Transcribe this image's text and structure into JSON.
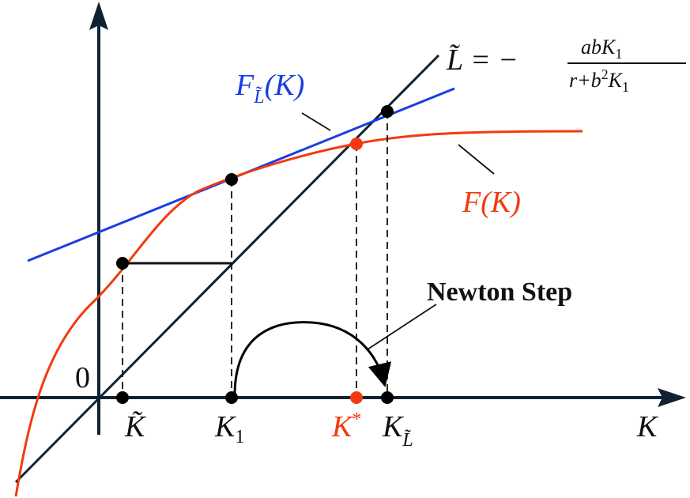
{
  "axis_origin_label": "0",
  "x_axis_label": "K",
  "points": {
    "k_tilde": {
      "base": "K̃"
    },
    "k1": {
      "base": "K",
      "sub": "1"
    },
    "k_star": {
      "base": "K",
      "sup": "*"
    },
    "k_l": {
      "base": "K",
      "sub": "L̃"
    }
  },
  "curves": {
    "f": {
      "label": "F(K)"
    },
    "f_l": {
      "base": "F",
      "sub": "L̃",
      "rest": "(K)"
    }
  },
  "line_formula": {
    "lhs": "L̃ = −",
    "numerator": {
      "base": "abK",
      "sub": "1"
    },
    "denominator": {
      "base": "r+b",
      "sup": "2",
      "rest": "K",
      "rest_sub": "1"
    }
  },
  "annotation": "Newton Step"
}
